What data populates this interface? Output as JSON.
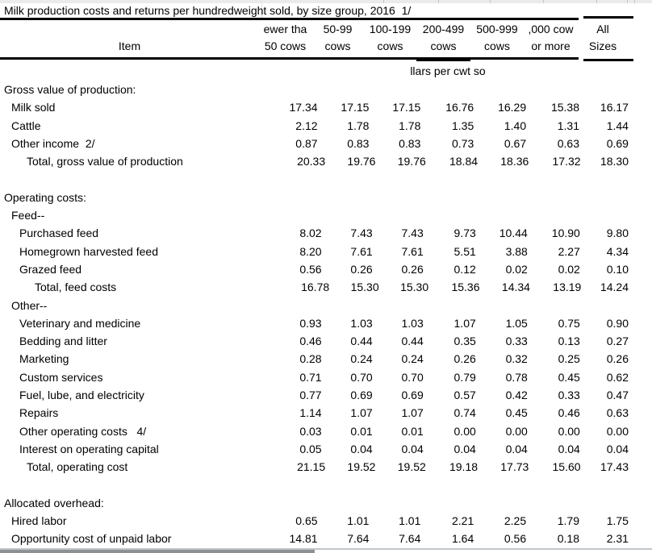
{
  "title": "Milk production costs and returns per hundredweight sold, by size group, 2016  1/",
  "table": {
    "item_header": "Item",
    "columns": [
      {
        "line1": "ewer tha",
        "line2": "50 cows"
      },
      {
        "line1": "50-99",
        "line2": "cows"
      },
      {
        "line1": "100-199",
        "line2": "cows"
      },
      {
        "line1": "200-499",
        "line2": "cows"
      },
      {
        "line1": "500-999",
        "line2": "cows"
      },
      {
        "line1": ",000 cow",
        "line2": "or more"
      },
      {
        "line1": "All",
        "line2": "Sizes"
      }
    ],
    "units_note": "llars per cwt so",
    "rows": [
      {
        "type": "section",
        "label": "Gross value of production:"
      },
      {
        "type": "item1",
        "label": "Milk sold",
        "values": [
          "17.34",
          "17.15",
          "17.15",
          "16.76",
          "16.29",
          "15.38",
          "16.17"
        ]
      },
      {
        "type": "item1",
        "label": "Cattle",
        "values": [
          "2.12",
          "1.78",
          "1.78",
          "1.35",
          "1.40",
          "1.31",
          "1.44"
        ]
      },
      {
        "type": "item1",
        "label": "Other income  2/",
        "values": [
          "0.87",
          "0.83",
          "0.83",
          "0.73",
          "0.67",
          "0.63",
          "0.69"
        ]
      },
      {
        "type": "total1",
        "label": "Total, gross value of production",
        "values": [
          "20.33",
          "19.76",
          "19.76",
          "18.84",
          "18.36",
          "17.32",
          "18.30"
        ]
      },
      {
        "type": "spacer"
      },
      {
        "type": "section",
        "label": "Operating costs:"
      },
      {
        "type": "item1",
        "label": "Feed--"
      },
      {
        "type": "item2",
        "label": "Purchased feed",
        "values": [
          "8.02",
          "7.43",
          "7.43",
          "9.73",
          "10.44",
          "10.90",
          "9.80"
        ]
      },
      {
        "type": "item2",
        "label": "Homegrown harvested feed",
        "values": [
          "8.20",
          "7.61",
          "7.61",
          "5.51",
          "3.88",
          "2.27",
          "4.34"
        ]
      },
      {
        "type": "item2",
        "label": "Grazed feed",
        "values": [
          "0.56",
          "0.26",
          "0.26",
          "0.12",
          "0.02",
          "0.02",
          "0.10"
        ]
      },
      {
        "type": "total2",
        "label": "Total, feed costs",
        "values": [
          "16.78",
          "15.30",
          "15.30",
          "15.36",
          "14.34",
          "13.19",
          "14.24"
        ]
      },
      {
        "type": "item1",
        "label": "Other--"
      },
      {
        "type": "item2",
        "label": "Veterinary and medicine",
        "values": [
          "0.93",
          "1.03",
          "1.03",
          "1.07",
          "1.05",
          "0.75",
          "0.90"
        ]
      },
      {
        "type": "item2",
        "label": "Bedding and litter",
        "values": [
          "0.46",
          "0.44",
          "0.44",
          "0.35",
          "0.33",
          "0.13",
          "0.27"
        ]
      },
      {
        "type": "item2",
        "label": "Marketing",
        "values": [
          "0.28",
          "0.24",
          "0.24",
          "0.26",
          "0.32",
          "0.25",
          "0.26"
        ]
      },
      {
        "type": "item2",
        "label": "Custom services",
        "values": [
          "0.71",
          "0.70",
          "0.70",
          "0.79",
          "0.78",
          "0.45",
          "0.62"
        ]
      },
      {
        "type": "item2",
        "label": "Fuel, lube, and electricity",
        "values": [
          "0.77",
          "0.69",
          "0.69",
          "0.57",
          "0.42",
          "0.33",
          "0.47"
        ]
      },
      {
        "type": "item2",
        "label": "Repairs",
        "values": [
          "1.14",
          "1.07",
          "1.07",
          "0.74",
          "0.45",
          "0.46",
          "0.63"
        ]
      },
      {
        "type": "item2",
        "label": "Other operating costs   4/",
        "values": [
          "0.03",
          "0.01",
          "0.01",
          "0.00",
          "0.00",
          "0.00",
          "0.00"
        ]
      },
      {
        "type": "item2",
        "label": "Interest on operating capital",
        "values": [
          "0.05",
          "0.04",
          "0.04",
          "0.04",
          "0.04",
          "0.04",
          "0.04"
        ]
      },
      {
        "type": "total1",
        "label": "Total, operating cost",
        "values": [
          "21.15",
          "19.52",
          "19.52",
          "19.18",
          "17.73",
          "15.60",
          "17.43"
        ]
      },
      {
        "type": "spacer"
      },
      {
        "type": "section",
        "label": "Allocated overhead:"
      },
      {
        "type": "item1",
        "label": "Hired labor",
        "values": [
          "0.65",
          "1.01",
          "1.01",
          "2.21",
          "2.25",
          "1.79",
          "1.75"
        ]
      },
      {
        "type": "item1",
        "label": "Opportunity cost of unpaid labor",
        "values": [
          "14.81",
          "7.64",
          "7.64",
          "1.64",
          "0.56",
          "0.18",
          "2.31"
        ]
      }
    ]
  }
}
